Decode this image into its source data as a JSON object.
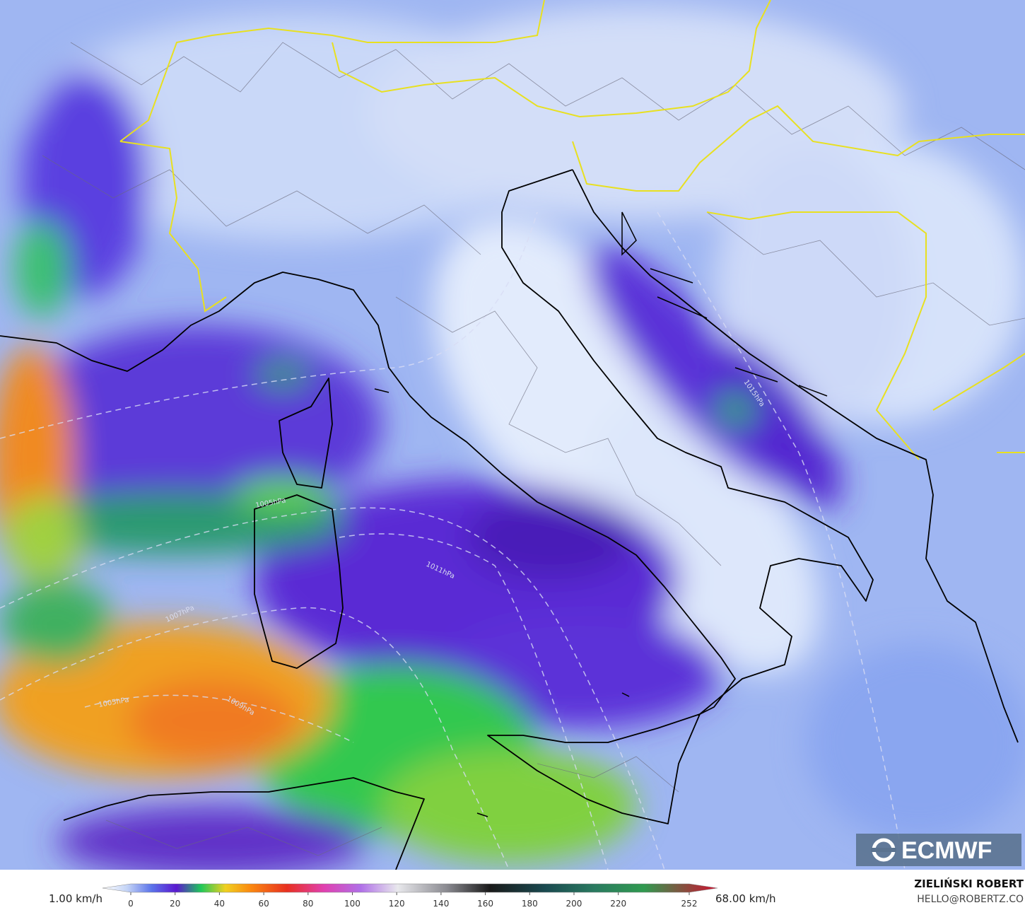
{
  "map": {
    "isobar_labels": [
      "1005hPa",
      "1007hPa",
      "1011hPa",
      "1015hPa",
      "1009hPa",
      "1005hPa"
    ],
    "logo": "ECMWF"
  },
  "legend": {
    "min_label": "1.00 km/h",
    "max_label": "68.00 km/h",
    "ticks": [
      0,
      20,
      40,
      60,
      80,
      100,
      120,
      140,
      160,
      180,
      200,
      220,
      252
    ],
    "range": [
      0,
      252
    ]
  },
  "credit": {
    "author": "ZIELIŃSKI ROBERT",
    "contact": "HELLO@ROBERTZ.CO"
  }
}
